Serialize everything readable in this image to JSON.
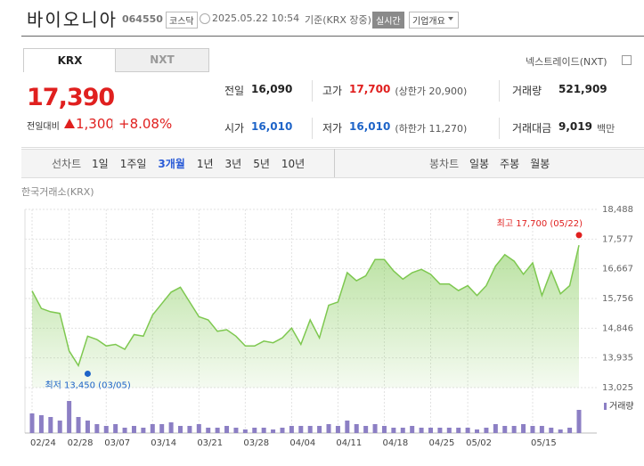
{
  "header": {
    "name": "바이오니아",
    "code": "064550",
    "market": "코스닥",
    "datetime": "2025.05.22 10:54",
    "basis": "기준(KRX 장중)",
    "realtime": "실시간",
    "company_info": "기업개요"
  },
  "tabs": [
    "KRX",
    "NXT"
  ],
  "nxt_link": "넥스트레이드(NXT)",
  "quote": {
    "price": "17,390",
    "change_label": "전일대비",
    "change": "1,300",
    "change_pct": "+8.08%"
  },
  "stats": [
    {
      "label": "전일",
      "value": "16,090"
    },
    {
      "label": "고가",
      "value": "17,700",
      "note": "(상한가 20,900)",
      "color": "#e0201f"
    },
    {
      "label": "거래량",
      "value": "521,909"
    },
    {
      "label": "시가",
      "value": "16,010",
      "color": "#1e64c8"
    },
    {
      "label": "저가",
      "value": "16,010",
      "note": "(하한가 11,270)",
      "color": "#1e64c8"
    },
    {
      "label": "거래대금",
      "value": "9,019",
      "note": "백만"
    }
  ],
  "periods": {
    "line_label": "선차트",
    "line_options": [
      "1일",
      "1주일",
      "3개월",
      "1년",
      "3년",
      "5년",
      "10년"
    ],
    "selected": 2,
    "candle_label": "봉차트",
    "candle_options": [
      "일봉",
      "주봉",
      "월봉"
    ]
  },
  "chart_data": {
    "type": "line",
    "source": "한국거래소(KRX)",
    "color": "#7ec850",
    "grid": true,
    "categories": [
      "02/24",
      null,
      null,
      null,
      "02/28",
      null,
      null,
      null,
      "03/07",
      null,
      null,
      null,
      null,
      "03/14",
      null,
      null,
      null,
      null,
      "03/21",
      null,
      null,
      null,
      null,
      "03/28",
      null,
      null,
      null,
      null,
      "04/04",
      null,
      null,
      null,
      null,
      "04/11",
      null,
      null,
      null,
      null,
      "04/18",
      null,
      null,
      null,
      null,
      "04/25",
      null,
      null,
      null,
      "05/02",
      null,
      null,
      null,
      null,
      null,
      null,
      "05/15",
      null,
      null,
      null,
      null,
      null
    ],
    "values": [
      15990,
      15450,
      15350,
      15300,
      14150,
      13700,
      14600,
      14500,
      14300,
      14350,
      14200,
      14650,
      14600,
      15250,
      15600,
      15950,
      16100,
      15650,
      15200,
      15100,
      14750,
      14800,
      14600,
      14300,
      14300,
      14450,
      14400,
      14550,
      14850,
      14350,
      15100,
      14550,
      15550,
      15650,
      16550,
      16300,
      16450,
      16950,
      16950,
      16600,
      16350,
      16550,
      16650,
      16500,
      16200,
      16200,
      16000,
      16150,
      15850,
      16150,
      16750,
      17100,
      16900,
      16500,
      16850,
      15850,
      16600,
      15900,
      16150,
      17390
    ],
    "ylim": [
      13025,
      18488
    ],
    "yticks": [
      {
        "value": 13025,
        "label": "13,025"
      },
      {
        "value": 13935,
        "label": "13,935"
      },
      {
        "value": 14846,
        "label": "14,846"
      },
      {
        "value": 15756,
        "label": "15,756"
      },
      {
        "value": 16667,
        "label": "16,667"
      },
      {
        "value": 17577,
        "label": "17,577"
      },
      {
        "value": 18488,
        "label": "18,488"
      }
    ],
    "annotations": [
      {
        "text": "최고 17,700 (05/22)",
        "value": 17700,
        "index": 59,
        "color": "#e0201f"
      },
      {
        "text": "최저 13,450 (03/05)",
        "value": 13450,
        "index": 6,
        "color": "#1e64c8"
      }
    ],
    "volume": {
      "name": "거래량",
      "color": "#8c7fc4",
      "ylim": [
        0,
        800000
      ],
      "values": [
        440000,
        400000,
        360000,
        280000,
        720000,
        360000,
        280000,
        200000,
        160000,
        200000,
        120000,
        160000,
        120000,
        200000,
        200000,
        240000,
        160000,
        160000,
        200000,
        120000,
        120000,
        160000,
        120000,
        80000,
        120000,
        120000,
        80000,
        120000,
        160000,
        160000,
        160000,
        160000,
        200000,
        160000,
        280000,
        200000,
        160000,
        200000,
        160000,
        120000,
        120000,
        160000,
        120000,
        120000,
        120000,
        120000,
        120000,
        120000,
        80000,
        120000,
        200000,
        160000,
        160000,
        200000,
        160000,
        160000,
        120000,
        80000,
        120000,
        520000
      ]
    }
  }
}
